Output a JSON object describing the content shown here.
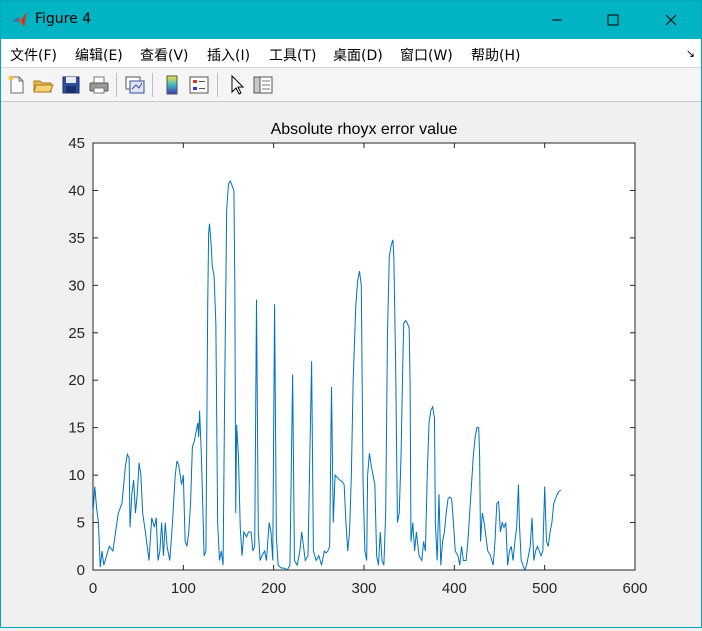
{
  "window": {
    "title": "Figure 4"
  },
  "menu": {
    "items": [
      {
        "label": "文件(F)"
      },
      {
        "label": "编辑(E)"
      },
      {
        "label": "查看(V)"
      },
      {
        "label": "插入(I)"
      },
      {
        "label": "工具(T)"
      },
      {
        "label": "桌面(D)"
      },
      {
        "label": "窗口(W)"
      },
      {
        "label": "帮助(H)"
      }
    ]
  },
  "toolbar": {
    "icons": [
      "new-figure-icon",
      "open-file-icon",
      "save-icon",
      "print-icon",
      "link-plot-icon",
      "insert-colorbar-icon",
      "insert-legend-icon",
      "edit-plot-pointer-icon",
      "property-inspector-icon"
    ]
  },
  "colors": {
    "titlebar": "#00b4c4",
    "line": "#0072bd"
  },
  "chart_data": {
    "type": "line",
    "title": "Absolute rhoyx error value",
    "xlabel": "",
    "ylabel": "",
    "xlim": [
      0,
      600
    ],
    "ylim": [
      0,
      45
    ],
    "xticks": [
      0,
      100,
      200,
      300,
      400,
      500,
      600
    ],
    "yticks": [
      0,
      5,
      10,
      15,
      20,
      25,
      30,
      35,
      40,
      45
    ],
    "grid": false,
    "series": [
      {
        "points": [
          [
            0,
            6
          ],
          [
            2,
            8.8
          ],
          [
            4,
            6.5
          ],
          [
            6,
            5
          ],
          [
            8,
            0.3
          ],
          [
            10,
            2
          ],
          [
            12,
            0.5
          ],
          [
            15,
            1.5
          ],
          [
            18,
            2.5
          ],
          [
            22,
            2
          ],
          [
            25,
            4
          ],
          [
            28,
            6
          ],
          [
            32,
            7
          ],
          [
            36,
            11
          ],
          [
            38,
            12.2
          ],
          [
            40,
            11.8
          ],
          [
            41,
            4.5
          ],
          [
            43,
            8
          ],
          [
            45,
            9.5
          ],
          [
            47,
            6
          ],
          [
            49,
            8
          ],
          [
            51,
            11.3
          ],
          [
            53,
            10
          ],
          [
            55,
            6
          ],
          [
            58,
            4
          ],
          [
            62,
            1
          ],
          [
            65,
            5.5
          ],
          [
            68,
            4.5
          ],
          [
            70,
            5.5
          ],
          [
            72,
            1
          ],
          [
            74,
            2
          ],
          [
            76,
            5
          ],
          [
            78,
            1.5
          ],
          [
            80,
            5
          ],
          [
            82,
            2.5
          ],
          [
            85,
            1
          ],
          [
            88,
            5
          ],
          [
            91,
            10
          ],
          [
            93,
            11.5
          ],
          [
            95,
            11
          ],
          [
            98,
            9
          ],
          [
            100,
            10
          ],
          [
            102,
            3
          ],
          [
            104,
            2.5
          ],
          [
            106,
            4
          ],
          [
            108,
            7
          ],
          [
            110,
            13
          ],
          [
            112,
            13.5
          ],
          [
            114,
            14.5
          ],
          [
            116,
            15.5
          ],
          [
            117,
            14
          ],
          [
            118,
            16.8
          ],
          [
            120,
            12
          ],
          [
            123,
            1.5
          ],
          [
            125,
            2
          ],
          [
            127,
            28
          ],
          [
            128,
            35.5
          ],
          [
            129,
            36.5
          ],
          [
            131,
            34
          ],
          [
            132,
            32
          ],
          [
            134,
            31
          ],
          [
            136,
            26
          ],
          [
            138,
            5
          ],
          [
            140,
            1
          ],
          [
            142,
            2
          ],
          [
            144,
            0.5
          ],
          [
            146,
            21
          ],
          [
            148,
            38
          ],
          [
            150,
            40.7
          ],
          [
            152,
            41
          ],
          [
            154,
            40.5
          ],
          [
            156,
            40
          ],
          [
            157,
            30
          ],
          [
            158,
            6
          ],
          [
            159,
            15.3
          ],
          [
            161,
            12
          ],
          [
            163,
            4.5
          ],
          [
            165,
            1.5
          ],
          [
            167,
            4
          ],
          [
            170,
            3.5
          ],
          [
            172,
            4
          ],
          [
            175,
            4
          ],
          [
            177,
            2
          ],
          [
            179,
            2.5
          ],
          [
            181,
            28.5
          ],
          [
            183,
            4
          ],
          [
            185,
            1
          ],
          [
            187,
            1.5
          ],
          [
            190,
            2
          ],
          [
            192,
            1
          ],
          [
            195,
            5
          ],
          [
            197,
            4
          ],
          [
            199,
            1
          ],
          [
            201,
            28
          ],
          [
            203,
            3.5
          ],
          [
            205,
            0.5
          ],
          [
            207,
            0.3
          ],
          [
            209,
            0.2
          ],
          [
            212,
            0.2
          ],
          [
            215,
            0
          ],
          [
            218,
            0.5
          ],
          [
            221,
            20.6
          ],
          [
            223,
            1
          ],
          [
            226,
            0.5
          ],
          [
            229,
            2
          ],
          [
            231,
            4
          ],
          [
            235,
            1
          ],
          [
            238,
            1.5
          ],
          [
            242,
            22
          ],
          [
            244,
            2
          ],
          [
            247,
            1
          ],
          [
            250,
            1.5
          ],
          [
            253,
            0.5
          ],
          [
            256,
            2
          ],
          [
            258,
            1.8
          ],
          [
            260,
            2
          ],
          [
            262,
            2.5
          ],
          [
            264,
            19.3
          ],
          [
            266,
            5
          ],
          [
            268,
            10
          ],
          [
            270,
            9.8
          ],
          [
            273,
            9.5
          ],
          [
            276,
            9.3
          ],
          [
            278,
            9
          ],
          [
            280,
            5
          ],
          [
            282,
            2
          ],
          [
            284,
            4
          ],
          [
            286,
            10
          ],
          [
            288,
            20
          ],
          [
            291,
            28
          ],
          [
            293,
            30.5
          ],
          [
            295,
            31.5
          ],
          [
            297,
            30
          ],
          [
            299,
            9
          ],
          [
            301,
            2
          ],
          [
            303,
            1
          ],
          [
            304,
            10
          ],
          [
            306,
            12.3
          ],
          [
            308,
            11
          ],
          [
            310,
            10
          ],
          [
            312,
            9
          ],
          [
            314,
            1.5
          ],
          [
            316,
            0.5
          ],
          [
            318,
            4
          ],
          [
            320,
            1
          ],
          [
            322,
            0.5
          ],
          [
            324,
            6
          ],
          [
            326,
            25
          ],
          [
            328,
            33
          ],
          [
            330,
            34.2
          ],
          [
            332,
            34.8
          ],
          [
            333,
            33
          ],
          [
            335,
            22
          ],
          [
            337,
            5
          ],
          [
            339,
            6
          ],
          [
            341,
            12
          ],
          [
            343,
            22
          ],
          [
            344,
            26
          ],
          [
            346,
            26.3
          ],
          [
            348,
            26
          ],
          [
            350,
            25.5
          ],
          [
            351,
            20
          ],
          [
            352,
            3
          ],
          [
            354,
            5
          ],
          [
            356,
            2
          ],
          [
            358,
            4
          ],
          [
            361,
            1.5
          ],
          [
            364,
            1
          ],
          [
            366,
            3
          ],
          [
            368,
            2
          ],
          [
            370,
            10
          ],
          [
            372,
            15.5
          ],
          [
            374,
            16.8
          ],
          [
            376,
            17.2
          ],
          [
            378,
            16
          ],
          [
            379,
            5
          ],
          [
            381,
            1
          ],
          [
            383,
            8
          ],
          [
            385,
            0.5
          ],
          [
            387,
            3
          ],
          [
            389,
            4
          ],
          [
            391,
            6
          ],
          [
            393,
            7.5
          ],
          [
            395,
            7.7
          ],
          [
            397,
            7.5
          ],
          [
            399,
            5
          ],
          [
            401,
            2
          ],
          [
            404,
            1.5
          ],
          [
            406,
            0.5
          ],
          [
            408,
            2.5
          ],
          [
            410,
            1
          ],
          [
            413,
            1
          ],
          [
            415,
            3
          ],
          [
            417,
            6
          ],
          [
            419,
            9
          ],
          [
            421,
            12
          ],
          [
            423,
            14
          ],
          [
            425,
            15
          ],
          [
            427,
            15
          ],
          [
            428,
            12
          ],
          [
            429,
            3
          ],
          [
            431,
            6
          ],
          [
            433,
            5
          ],
          [
            435,
            3.5
          ],
          [
            437,
            2
          ],
          [
            440,
            1.5
          ],
          [
            443,
            0.5
          ],
          [
            445,
            3
          ],
          [
            447,
            7
          ],
          [
            449,
            7.2
          ],
          [
            451,
            4
          ],
          [
            453,
            5
          ],
          [
            455,
            4.5
          ],
          [
            457,
            5
          ],
          [
            459,
            0.5
          ],
          [
            461,
            2
          ],
          [
            463,
            2.5
          ],
          [
            465,
            1
          ],
          [
            467,
            3
          ],
          [
            469,
            4.5
          ],
          [
            471,
            9
          ],
          [
            472,
            5
          ],
          [
            474,
            1
          ],
          [
            476,
            0.5
          ],
          [
            478,
            0
          ],
          [
            480,
            0.5
          ],
          [
            482,
            1.5
          ],
          [
            484,
            2.5
          ],
          [
            486,
            5.5
          ],
          [
            488,
            1
          ],
          [
            490,
            2
          ],
          [
            492,
            2.5
          ],
          [
            494,
            2
          ],
          [
            496,
            1.5
          ],
          [
            498,
            2
          ],
          [
            500,
            8.8
          ],
          [
            502,
            3
          ],
          [
            504,
            2.5
          ],
          [
            506,
            4
          ],
          [
            508,
            5
          ],
          [
            510,
            7
          ],
          [
            512,
            7.5
          ],
          [
            514,
            8
          ],
          [
            516,
            8.3
          ],
          [
            518,
            8.4
          ]
        ]
      }
    ]
  }
}
